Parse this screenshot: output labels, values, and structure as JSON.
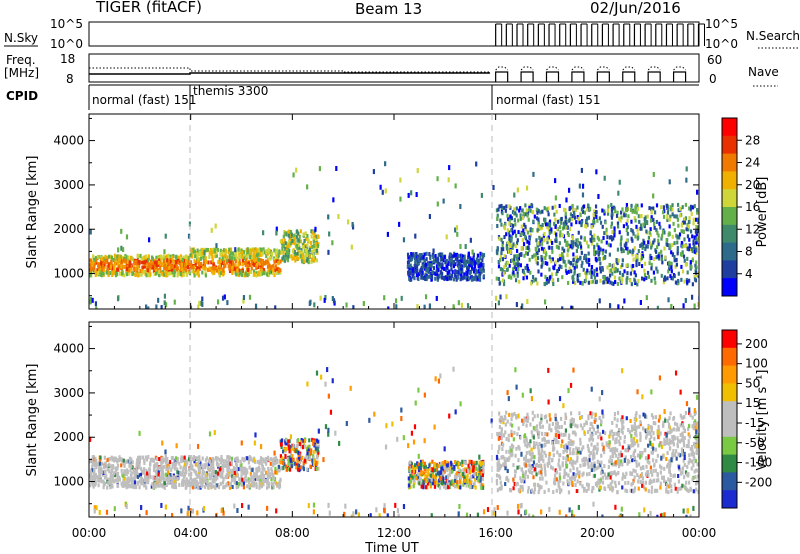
{
  "header": {
    "title": "TIGER (fitACF)",
    "beam": "Beam 13",
    "date": "02/Jun/2016"
  },
  "param_panels": {
    "nsky_label": "N.Sky",
    "nsearch_label": "N.Search",
    "nsky_ticks": [
      "10^5",
      "10^0"
    ],
    "nsearch_ticks": [
      "10^5",
      "10^0"
    ],
    "freq_label_line1": "Freq.",
    "freq_label_line2": "[MHz]",
    "freq_ticks": [
      "18",
      "8"
    ],
    "nave_label": "Nave",
    "nave_ticks": [
      "60",
      "0"
    ],
    "cpid_label": "CPID",
    "cpid_segments": [
      {
        "name": "normal (fast) 151",
        "start_hour": 0,
        "end_hour": 3.9
      },
      {
        "name": "themis 3300",
        "start_hour": 3.9,
        "end_hour": 16
      },
      {
        "name": "normal (fast) 151",
        "start_hour": 16,
        "end_hour": 24
      }
    ]
  },
  "colors": {
    "power_scale": [
      "#0000ff",
      "#1f3fa0",
      "#2e6a8a",
      "#3f8a6a",
      "#63b04a",
      "#cfd63a",
      "#f0b000",
      "#f07a00",
      "#e83000",
      "#ff0000"
    ],
    "velocity_scale": [
      "#ff0000",
      "#ff6a00",
      "#ff9a00",
      "#f0c000",
      "#bebebe",
      "#bebebe",
      "#7ac943",
      "#2f8a44",
      "#2b5aa0",
      "#1a2bd0"
    ]
  },
  "chart_data": [
    {
      "type": "heatmap",
      "panel": "power",
      "ylabel": "Slant Range [km]",
      "xlabel": "",
      "x_ticks": [
        "00:00",
        "04:00",
        "08:00",
        "12:00",
        "16:00",
        "20:00",
        "00:00"
      ],
      "y_ticks": [
        1000,
        2000,
        3000,
        4000
      ],
      "ylim": [
        200,
        4600
      ],
      "xlim_hours": [
        0,
        24
      ],
      "colorbar": {
        "label": "Power [dB]",
        "ticks": [
          4,
          8,
          12,
          16,
          20,
          24,
          28
        ],
        "range": [
          0,
          32
        ]
      },
      "scatter_bands": [
        {
          "hours": [
            0,
            3.9
          ],
          "range_km": [
            1000,
            1450
          ],
          "level": "high"
        },
        {
          "hours": [
            3.9,
            7.5
          ],
          "range_km": [
            1000,
            1600
          ],
          "level": "high"
        },
        {
          "hours": [
            7.5,
            9
          ],
          "range_km": [
            1300,
            2000
          ],
          "level": "mid"
        },
        {
          "hours": [
            12.5,
            15.5
          ],
          "range_km": [
            900,
            1500
          ],
          "level": "low"
        },
        {
          "hours": [
            16,
            24
          ],
          "range_km": [
            800,
            2600
          ],
          "level": "mixed"
        }
      ]
    },
    {
      "type": "heatmap",
      "panel": "velocity",
      "ylabel": "Slant Range [km]",
      "xlabel": "Time UT",
      "x_ticks": [
        "00:00",
        "04:00",
        "08:00",
        "12:00",
        "16:00",
        "20:00",
        "00:00"
      ],
      "y_ticks": [
        1000,
        2000,
        3000,
        4000
      ],
      "ylim": [
        200,
        4600
      ],
      "xlim_hours": [
        0,
        24
      ],
      "colorbar": {
        "label": "Velocity [m s⁻¹]",
        "ticks": [
          "200",
          "100",
          "50",
          "15",
          "-15",
          "-50",
          "-100",
          "-200"
        ]
      },
      "scatter_bands": [
        {
          "hours": [
            0,
            7.5
          ],
          "range_km": [
            900,
            1600
          ],
          "level": "ground"
        },
        {
          "hours": [
            7.5,
            9
          ],
          "range_km": [
            1300,
            2000
          ],
          "level": "mixed"
        },
        {
          "hours": [
            12.5,
            15.5
          ],
          "range_km": [
            900,
            1500
          ],
          "level": "mixed"
        },
        {
          "hours": [
            16,
            24
          ],
          "range_km": [
            800,
            2600
          ],
          "level": "ground"
        }
      ]
    }
  ]
}
